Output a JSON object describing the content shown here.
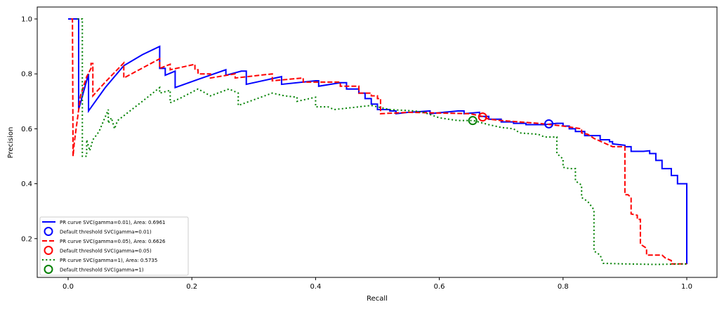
{
  "chart_data": {
    "type": "line",
    "title": "",
    "xlabel": "Recall",
    "ylabel": "Precision",
    "xlim": [
      -0.05,
      1.05
    ],
    "ylim": [
      0.055,
      1.043
    ],
    "xticks": [
      "0.0",
      "0.2",
      "0.4",
      "0.6",
      "0.8",
      "1.0"
    ],
    "xtick_values": [
      0,
      0.2,
      0.4,
      0.6,
      0.8,
      1.0
    ],
    "yticks": [
      "0.2",
      "0.4",
      "0.6",
      "0.8",
      "1.0"
    ],
    "ytick_values": [
      0.2,
      0.4,
      0.6,
      0.8,
      1.0
    ],
    "legend_placement": "lower-left",
    "series": [
      {
        "name": "PR curve SVC(gamma=0.01), Area: 0.6961",
        "color": "#0000ff",
        "style": "solid",
        "points": [
          [
            0,
            1.0
          ],
          [
            0.017,
            1.0
          ],
          [
            0.017,
            0.67
          ],
          [
            0.033,
            0.8
          ],
          [
            0.033,
            0.665
          ],
          [
            0.06,
            0.75
          ],
          [
            0.09,
            0.83
          ],
          [
            0.12,
            0.87
          ],
          [
            0.148,
            0.9
          ],
          [
            0.148,
            0.82
          ],
          [
            0.157,
            0.82
          ],
          [
            0.157,
            0.795
          ],
          [
            0.173,
            0.81
          ],
          [
            0.173,
            0.75
          ],
          [
            0.21,
            0.78
          ],
          [
            0.255,
            0.815
          ],
          [
            0.255,
            0.795
          ],
          [
            0.28,
            0.81
          ],
          [
            0.288,
            0.81
          ],
          [
            0.288,
            0.762
          ],
          [
            0.345,
            0.79
          ],
          [
            0.345,
            0.762
          ],
          [
            0.4,
            0.775
          ],
          [
            0.405,
            0.775
          ],
          [
            0.405,
            0.755
          ],
          [
            0.44,
            0.768
          ],
          [
            0.45,
            0.768
          ],
          [
            0.45,
            0.745
          ],
          [
            0.47,
            0.745
          ],
          [
            0.47,
            0.73
          ],
          [
            0.48,
            0.73
          ],
          [
            0.48,
            0.71
          ],
          [
            0.49,
            0.71
          ],
          [
            0.49,
            0.69
          ],
          [
            0.5,
            0.69
          ],
          [
            0.5,
            0.67
          ],
          [
            0.52,
            0.67
          ],
          [
            0.52,
            0.665
          ],
          [
            0.53,
            0.665
          ],
          [
            0.53,
            0.655
          ],
          [
            0.55,
            0.66
          ],
          [
            0.585,
            0.665
          ],
          [
            0.585,
            0.655
          ],
          [
            0.63,
            0.665
          ],
          [
            0.64,
            0.665
          ],
          [
            0.64,
            0.655
          ],
          [
            0.665,
            0.66
          ],
          [
            0.665,
            0.645
          ],
          [
            0.68,
            0.645
          ],
          [
            0.68,
            0.635
          ],
          [
            0.7,
            0.635
          ],
          [
            0.7,
            0.625
          ],
          [
            0.72,
            0.625
          ],
          [
            0.72,
            0.62
          ],
          [
            0.74,
            0.62
          ],
          [
            0.74,
            0.615
          ],
          [
            0.77,
            0.615
          ],
          [
            0.79,
            0.62
          ],
          [
            0.8,
            0.62
          ],
          [
            0.8,
            0.61
          ],
          [
            0.81,
            0.61
          ],
          [
            0.81,
            0.6
          ],
          [
            0.82,
            0.6
          ],
          [
            0.82,
            0.59
          ],
          [
            0.835,
            0.59
          ],
          [
            0.835,
            0.575
          ],
          [
            0.86,
            0.575
          ],
          [
            0.86,
            0.56
          ],
          [
            0.875,
            0.56
          ],
          [
            0.875,
            0.553
          ],
          [
            0.88,
            0.553
          ],
          [
            0.88,
            0.545
          ],
          [
            0.9,
            0.54
          ],
          [
            0.9,
            0.535
          ],
          [
            0.91,
            0.535
          ],
          [
            0.91,
            0.518
          ],
          [
            0.93,
            0.518
          ],
          [
            0.94,
            0.52
          ],
          [
            0.94,
            0.51
          ],
          [
            0.95,
            0.51
          ],
          [
            0.95,
            0.485
          ],
          [
            0.96,
            0.485
          ],
          [
            0.96,
            0.455
          ],
          [
            0.975,
            0.455
          ],
          [
            0.975,
            0.43
          ],
          [
            0.985,
            0.43
          ],
          [
            0.985,
            0.4
          ],
          [
            1.0,
            0.4
          ],
          [
            1.0,
            0.107
          ]
        ],
        "default_threshold": {
          "label": "Default threshold SVC(gamma=0.01)",
          "point": [
            0.777,
            0.618
          ]
        }
      },
      {
        "name": "PR curve SVC(gamma=0.05), Area: 0.6626",
        "color": "#ff0000",
        "style": "dashed",
        "points": [
          [
            0.005,
            1.0
          ],
          [
            0.007,
            1.0
          ],
          [
            0.008,
            0.5
          ],
          [
            0.01,
            0.55
          ],
          [
            0.02,
            0.72
          ],
          [
            0.03,
            0.79
          ],
          [
            0.037,
            0.82
          ],
          [
            0.037,
            0.838
          ],
          [
            0.04,
            0.838
          ],
          [
            0.04,
            0.72
          ],
          [
            0.06,
            0.77
          ],
          [
            0.09,
            0.84
          ],
          [
            0.09,
            0.785
          ],
          [
            0.148,
            0.855
          ],
          [
            0.148,
            0.82
          ],
          [
            0.165,
            0.835
          ],
          [
            0.165,
            0.815
          ],
          [
            0.205,
            0.835
          ],
          [
            0.205,
            0.815
          ],
          [
            0.21,
            0.815
          ],
          [
            0.21,
            0.8
          ],
          [
            0.23,
            0.8
          ],
          [
            0.23,
            0.785
          ],
          [
            0.27,
            0.8
          ],
          [
            0.27,
            0.785
          ],
          [
            0.33,
            0.8
          ],
          [
            0.33,
            0.775
          ],
          [
            0.38,
            0.785
          ],
          [
            0.38,
            0.77
          ],
          [
            0.44,
            0.77
          ],
          [
            0.44,
            0.755
          ],
          [
            0.47,
            0.755
          ],
          [
            0.47,
            0.73
          ],
          [
            0.49,
            0.73
          ],
          [
            0.49,
            0.72
          ],
          [
            0.5,
            0.72
          ],
          [
            0.5,
            0.71
          ],
          [
            0.505,
            0.71
          ],
          [
            0.505,
            0.655
          ],
          [
            0.55,
            0.66
          ],
          [
            0.65,
            0.655
          ],
          [
            0.67,
            0.645
          ],
          [
            0.68,
            0.635
          ],
          [
            0.7,
            0.63
          ],
          [
            0.76,
            0.62
          ],
          [
            0.78,
            0.615
          ],
          [
            0.8,
            0.61
          ],
          [
            0.815,
            0.605
          ],
          [
            0.83,
            0.6
          ],
          [
            0.83,
            0.585
          ],
          [
            0.84,
            0.58
          ],
          [
            0.85,
            0.565
          ],
          [
            0.86,
            0.555
          ],
          [
            0.87,
            0.545
          ],
          [
            0.88,
            0.535
          ],
          [
            0.9,
            0.535
          ],
          [
            0.9,
            0.36
          ],
          [
            0.905,
            0.36
          ],
          [
            0.91,
            0.35
          ],
          [
            0.91,
            0.29
          ],
          [
            0.92,
            0.285
          ],
          [
            0.92,
            0.27
          ],
          [
            0.925,
            0.27
          ],
          [
            0.925,
            0.18
          ],
          [
            0.935,
            0.165
          ],
          [
            0.935,
            0.14
          ],
          [
            0.96,
            0.14
          ],
          [
            0.965,
            0.13
          ],
          [
            0.975,
            0.12
          ],
          [
            0.975,
            0.108
          ],
          [
            1.0,
            0.108
          ]
        ],
        "default_threshold": {
          "label": "Default threshold SVC(gamma=0.05)",
          "point": [
            0.67,
            0.643
          ]
        }
      },
      {
        "name": "PR curve SVC(gamma=1), Area: 0.5735",
        "color": "#008000",
        "style": "dotted",
        "points": [
          [
            0.015,
            1.0
          ],
          [
            0.023,
            1.0
          ],
          [
            0.023,
            0.5
          ],
          [
            0.03,
            0.5
          ],
          [
            0.03,
            0.56
          ],
          [
            0.035,
            0.52
          ],
          [
            0.04,
            0.56
          ],
          [
            0.05,
            0.59
          ],
          [
            0.065,
            0.67
          ],
          [
            0.065,
            0.62
          ],
          [
            0.07,
            0.64
          ],
          [
            0.075,
            0.6
          ],
          [
            0.08,
            0.63
          ],
          [
            0.1,
            0.665
          ],
          [
            0.12,
            0.7
          ],
          [
            0.148,
            0.75
          ],
          [
            0.148,
            0.73
          ],
          [
            0.165,
            0.74
          ],
          [
            0.165,
            0.695
          ],
          [
            0.18,
            0.71
          ],
          [
            0.21,
            0.745
          ],
          [
            0.23,
            0.72
          ],
          [
            0.26,
            0.745
          ],
          [
            0.275,
            0.73
          ],
          [
            0.275,
            0.685
          ],
          [
            0.33,
            0.73
          ],
          [
            0.35,
            0.72
          ],
          [
            0.37,
            0.715
          ],
          [
            0.37,
            0.7
          ],
          [
            0.4,
            0.715
          ],
          [
            0.4,
            0.68
          ],
          [
            0.42,
            0.68
          ],
          [
            0.43,
            0.67
          ],
          [
            0.49,
            0.685
          ],
          [
            0.52,
            0.67
          ],
          [
            0.56,
            0.665
          ],
          [
            0.575,
            0.66
          ],
          [
            0.6,
            0.64
          ],
          [
            0.63,
            0.63
          ],
          [
            0.655,
            0.63
          ],
          [
            0.68,
            0.615
          ],
          [
            0.7,
            0.605
          ],
          [
            0.72,
            0.6
          ],
          [
            0.73,
            0.585
          ],
          [
            0.76,
            0.58
          ],
          [
            0.77,
            0.57
          ],
          [
            0.79,
            0.57
          ],
          [
            0.79,
            0.51
          ],
          [
            0.8,
            0.49
          ],
          [
            0.8,
            0.46
          ],
          [
            0.81,
            0.455
          ],
          [
            0.82,
            0.455
          ],
          [
            0.82,
            0.41
          ],
          [
            0.83,
            0.395
          ],
          [
            0.83,
            0.35
          ],
          [
            0.84,
            0.335
          ],
          [
            0.85,
            0.305
          ],
          [
            0.85,
            0.155
          ],
          [
            0.86,
            0.14
          ],
          [
            0.865,
            0.11
          ],
          [
            0.9,
            0.108
          ],
          [
            0.95,
            0.106
          ],
          [
            1.0,
            0.108
          ]
        ],
        "default_threshold": {
          "label": "Default threshold SVC(gamma=1)",
          "point": [
            0.654,
            0.63
          ]
        }
      }
    ]
  }
}
